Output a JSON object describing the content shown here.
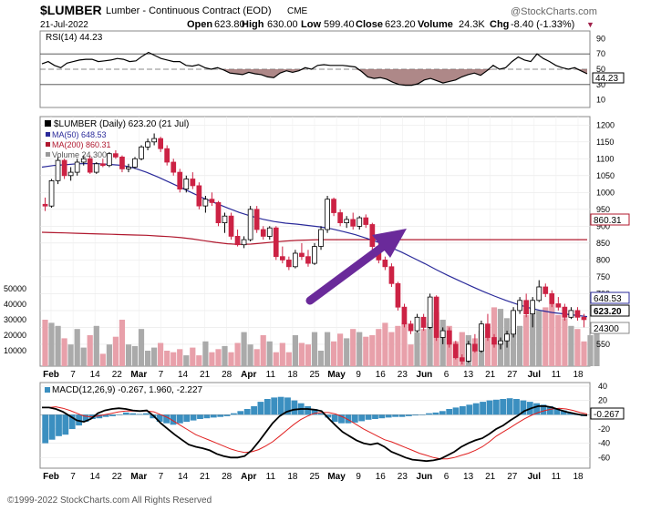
{
  "header": {
    "symbol": "$LUMBER",
    "description": "Lumber - Continuous Contract (EOD)",
    "exchange": "CME",
    "date": "21-Jul-2022",
    "watermark": "@StockCharts.com",
    "quote": {
      "open_label": "Open",
      "open": "623.80",
      "high_label": "High",
      "high": "630.00",
      "low_label": "Low",
      "low": "599.40",
      "close_label": "Close",
      "close": "623.20",
      "volume_label": "Volume",
      "volume": "24.3K",
      "chg_label": "Chg",
      "chg": "-8.40 (-1.33%)",
      "chg_arrow": "▼"
    }
  },
  "footer": {
    "copyright": "©1999-2022 StockCharts.com All Rights Reserved"
  },
  "colors": {
    "up": "#ffffff",
    "down": "#cc2244",
    "ma50": "#2a2a9a",
    "ma200": "#b0182e",
    "volume_up": "#aaaaaa",
    "volume_down": "#e8a0aa",
    "macd_hist": "#3b8fc0",
    "macd_line": "#000000",
    "signal_line": "#e02020",
    "arrow": "#6a2a9a",
    "rsi_line": "#000000",
    "rsi_fill": "#9a6a6a"
  },
  "chart_data": [
    {
      "type": "line",
      "panel": "rsi",
      "legend": "RSI(14) 44.23",
      "y_ticks": [
        "90",
        "70",
        "50",
        "30",
        "10"
      ],
      "ylim": [
        0,
        100
      ],
      "last_label": "44.23",
      "series": [
        {
          "name": "RSI(14)",
          "values": [
            57,
            60,
            55,
            52,
            58,
            60,
            62,
            63,
            63,
            60,
            61,
            62,
            64,
            63,
            60,
            61,
            67,
            72,
            68,
            64,
            62,
            60,
            60,
            55,
            54,
            56,
            52,
            50,
            52,
            49,
            45,
            44,
            43,
            46,
            44,
            43,
            40,
            39,
            45,
            48,
            46,
            48,
            52,
            50,
            55,
            56,
            55,
            55,
            55,
            54,
            53,
            47,
            40,
            38,
            39,
            37,
            33,
            30,
            29,
            29,
            31,
            36,
            38,
            35,
            32,
            34,
            36,
            40,
            43,
            45,
            42,
            48,
            55,
            50,
            52,
            60,
            66,
            62,
            60,
            70,
            64,
            60,
            55,
            52,
            50,
            52,
            48,
            44
          ]
        }
      ]
    },
    {
      "type": "candlestick",
      "panel": "price",
      "legend": {
        "title": "$LUMBER (Daily) 623.20 (21 Jul)",
        "ma50": "MA(50) 648.53",
        "ma200": "MA(200) 860.31",
        "volume": "Volume 24,300"
      },
      "y_ticks": [
        "1200",
        "1150",
        "1100",
        "1050",
        "1000",
        "950",
        "900",
        "850",
        "800",
        "750",
        "700",
        "650",
        "600",
        "550"
      ],
      "tag_ma200": "860.31",
      "tag_ma50": "648.53",
      "tag_close": "623.20",
      "tag_volume": "24300",
      "volume_ticks": [
        "50000",
        "40000",
        "30000",
        "20000",
        "10000"
      ],
      "x_labels": [
        "Feb",
        "7",
        "14",
        "22",
        "Mar",
        "7",
        "14",
        "21",
        "28",
        "Apr",
        "11",
        "18",
        "25",
        "May",
        "9",
        "16",
        "23",
        "Jun",
        "6",
        "13",
        "21",
        "27",
        "Jul",
        "11",
        "18"
      ],
      "candles": [
        [
          965,
          985,
          945,
          960
        ],
        [
          960,
          1040,
          955,
          1035
        ],
        [
          1035,
          1105,
          1025,
          1095
        ],
        [
          1095,
          1100,
          1040,
          1050
        ],
        [
          1050,
          1075,
          1035,
          1060
        ],
        [
          1060,
          1100,
          1050,
          1090
        ],
        [
          1090,
          1110,
          1080,
          1100
        ],
        [
          1100,
          1110,
          1055,
          1060
        ],
        [
          1060,
          1090,
          1055,
          1085
        ],
        [
          1085,
          1100,
          1075,
          1080
        ],
        [
          1080,
          1120,
          1075,
          1115
        ],
        [
          1115,
          1125,
          1100,
          1105
        ],
        [
          1105,
          1110,
          1060,
          1070
        ],
        [
          1070,
          1085,
          1060,
          1075
        ],
        [
          1075,
          1105,
          1070,
          1100
        ],
        [
          1100,
          1140,
          1095,
          1135
        ],
        [
          1135,
          1160,
          1125,
          1150
        ],
        [
          1150,
          1175,
          1140,
          1160
        ],
        [
          1160,
          1165,
          1120,
          1130
        ],
        [
          1130,
          1140,
          1080,
          1090
        ],
        [
          1090,
          1100,
          1050,
          1060
        ],
        [
          1060,
          1070,
          1000,
          1010
        ],
        [
          1010,
          1050,
          1000,
          1040
        ],
        [
          1040,
          1060,
          1010,
          1020
        ],
        [
          1020,
          1030,
          950,
          960
        ],
        [
          960,
          990,
          940,
          980
        ],
        [
          980,
          1000,
          960,
          970
        ],
        [
          970,
          975,
          900,
          910
        ],
        [
          910,
          940,
          880,
          930
        ],
        [
          930,
          940,
          860,
          870
        ],
        [
          870,
          890,
          840,
          845
        ],
        [
          845,
          870,
          835,
          860
        ],
        [
          860,
          960,
          855,
          950
        ],
        [
          950,
          960,
          880,
          890
        ],
        [
          890,
          900,
          860,
          870
        ],
        [
          870,
          900,
          860,
          895
        ],
        [
          895,
          900,
          800,
          810
        ],
        [
          810,
          840,
          790,
          800
        ],
        [
          800,
          810,
          770,
          780
        ],
        [
          780,
          830,
          775,
          820
        ],
        [
          820,
          850,
          800,
          810
        ],
        [
          810,
          830,
          780,
          790
        ],
        [
          790,
          850,
          785,
          840
        ],
        [
          840,
          900,
          830,
          890
        ],
        [
          890,
          990,
          880,
          980
        ],
        [
          980,
          985,
          930,
          940
        ],
        [
          940,
          950,
          900,
          910
        ],
        [
          910,
          930,
          895,
          920
        ],
        [
          920,
          940,
          890,
          900
        ],
        [
          900,
          930,
          890,
          925
        ],
        [
          925,
          935,
          895,
          905
        ],
        [
          905,
          910,
          830,
          840
        ],
        [
          840,
          850,
          790,
          800
        ],
        [
          800,
          810,
          770,
          780
        ],
        [
          780,
          790,
          720,
          730
        ],
        [
          730,
          735,
          650,
          660
        ],
        [
          660,
          670,
          600,
          610
        ],
        [
          610,
          620,
          580,
          590
        ],
        [
          590,
          640,
          585,
          630
        ],
        [
          630,
          640,
          590,
          600
        ],
        [
          600,
          700,
          595,
          690
        ],
        [
          690,
          695,
          560,
          570
        ],
        [
          570,
          600,
          550,
          590
        ],
        [
          590,
          600,
          540,
          550
        ],
        [
          550,
          560,
          505,
          510
        ],
        [
          510,
          520,
          490,
          500
        ],
        [
          500,
          560,
          495,
          550
        ],
        [
          550,
          580,
          525,
          530
        ],
        [
          530,
          620,
          525,
          610
        ],
        [
          610,
          640,
          560,
          570
        ],
        [
          570,
          580,
          540,
          550
        ],
        [
          550,
          570,
          535,
          560
        ],
        [
          560,
          590,
          540,
          580
        ],
        [
          580,
          660,
          570,
          650
        ],
        [
          650,
          690,
          640,
          680
        ],
        [
          680,
          700,
          630,
          640
        ],
        [
          640,
          690,
          600,
          680
        ],
        [
          680,
          740,
          675,
          720
        ],
        [
          720,
          730,
          690,
          700
        ],
        [
          700,
          710,
          660,
          670
        ],
        [
          670,
          690,
          650,
          660
        ],
        [
          660,
          670,
          620,
          630
        ],
        [
          630,
          660,
          625,
          650
        ],
        [
          650,
          660,
          620,
          630
        ],
        [
          630,
          640,
          600,
          623
        ]
      ],
      "ma50": [
        1075,
        1080,
        1082,
        1085,
        1086,
        1085,
        1083,
        1080,
        1072,
        1060,
        1046,
        1030,
        1014,
        998,
        982,
        968,
        954,
        941,
        930,
        921,
        914,
        909,
        906,
        902,
        898,
        892,
        884,
        875,
        864,
        852,
        838,
        823,
        806,
        789,
        771,
        754,
        738,
        722,
        707,
        693,
        680,
        668,
        658,
        650,
        644,
        640,
        636,
        632
      ],
      "ma200": [
        882,
        881,
        880,
        879,
        878,
        877,
        876,
        875,
        874,
        873,
        871,
        869,
        866,
        862,
        857,
        852,
        848,
        846,
        847,
        850,
        853,
        856,
        858,
        859,
        860,
        860,
        860,
        860,
        860,
        860,
        860,
        860,
        860,
        860,
        860,
        860,
        860,
        860,
        860,
        860,
        860,
        860,
        860,
        860,
        860,
        860,
        860,
        860
      ],
      "volume": [
        30000,
        28000,
        26000,
        18000,
        14000,
        24000,
        12000,
        20000,
        26000,
        8000,
        14000,
        19000,
        30000,
        14000,
        13000,
        24000,
        10000,
        12000,
        15000,
        10000,
        9000,
        11000,
        7000,
        12000,
        7000,
        16000,
        9000,
        11000,
        13000,
        9000,
        15000,
        22000,
        14000,
        11000,
        20000,
        16000,
        9000,
        15000,
        9000,
        20000,
        15000,
        14000,
        22000,
        10000,
        22000,
        16000,
        21000,
        18000,
        24000,
        22000,
        19000,
        20000,
        24000,
        28000,
        22000,
        26000,
        28000,
        14000,
        22000,
        24000,
        28000,
        35000,
        30000,
        26000,
        16000,
        22000,
        20000,
        18000,
        23000,
        19000,
        38000,
        37000,
        31000,
        24000,
        26000,
        33000,
        38000,
        36000,
        38000,
        40000,
        33000,
        31000,
        26000,
        24000,
        16000,
        20000,
        24300
      ]
    },
    {
      "type": "line",
      "panel": "macd",
      "legend": "MACD(12,26,9) -0.267, 1.960, -2.227",
      "y_ticks": [
        "40",
        "20",
        "0",
        "-20",
        "-40",
        "-60"
      ],
      "ylim": [
        -75,
        45
      ],
      "last_label": "-0.267",
      "series": [
        {
          "name": "MACD",
          "values": [
            10,
            10,
            8,
            4,
            -2,
            -8,
            -10,
            -6,
            2,
            6,
            8,
            9,
            8,
            6,
            5,
            6,
            -2,
            -12,
            -20,
            -28,
            -35,
            -42,
            -45,
            -47,
            -50,
            -55,
            -58,
            -60,
            -60,
            -58,
            -50,
            -38,
            -25,
            -12,
            -2,
            4,
            7,
            8,
            8,
            7,
            5,
            -5,
            -15,
            -24,
            -30,
            -36,
            -40,
            -42,
            -40,
            -45,
            -52,
            -56,
            -60,
            -63,
            -64,
            -65,
            -64,
            -62,
            -57,
            -52,
            -45,
            -40,
            -36,
            -33,
            -27,
            -20,
            -15,
            -8,
            -2,
            5,
            9,
            12,
            12,
            10,
            7,
            4,
            2,
            0,
            -1
          ]
        },
        {
          "name": "Signal",
          "values": [
            10,
            10,
            11,
            9,
            6,
            2,
            -2,
            -3,
            -2,
            0,
            2,
            4,
            5,
            5,
            5,
            5,
            4,
            0,
            -4,
            -10,
            -16,
            -22,
            -28,
            -32,
            -36,
            -40,
            -44,
            -48,
            -51,
            -53,
            -52,
            -49,
            -44,
            -38,
            -30,
            -22,
            -14,
            -7,
            -2,
            2,
            3,
            3,
            1,
            -3,
            -8,
            -14,
            -20,
            -25,
            -30,
            -35,
            -38,
            -42,
            -46,
            -50,
            -54,
            -57,
            -60,
            -62,
            -62,
            -60,
            -57,
            -54,
            -50,
            -45,
            -38,
            -30,
            -24,
            -18,
            -12,
            -6,
            -1,
            3,
            6,
            8,
            9,
            8,
            6,
            3,
            1
          ]
        },
        {
          "name": "Histogram",
          "values": [
            -40,
            -35,
            -30,
            -28,
            -20,
            -15,
            -10,
            -6,
            -5,
            -3,
            -2,
            0,
            3,
            2,
            1,
            2,
            -5,
            -10,
            -12,
            -14,
            -12,
            -10,
            -8,
            -6,
            -5,
            -4,
            -3,
            -2,
            2,
            5,
            8,
            12,
            18,
            22,
            24,
            25,
            24,
            20,
            16,
            12,
            8,
            2,
            -4,
            -10,
            -12,
            -12,
            -11,
            -9,
            -7,
            -6,
            -5,
            -4,
            -3,
            -3,
            -2,
            -1,
            0,
            2,
            3,
            5,
            8,
            10,
            12,
            14,
            16,
            18,
            20,
            21,
            22,
            23,
            22,
            20,
            18,
            16,
            14,
            12,
            9,
            6,
            3,
            0,
            -2
          ]
        }
      ]
    }
  ]
}
